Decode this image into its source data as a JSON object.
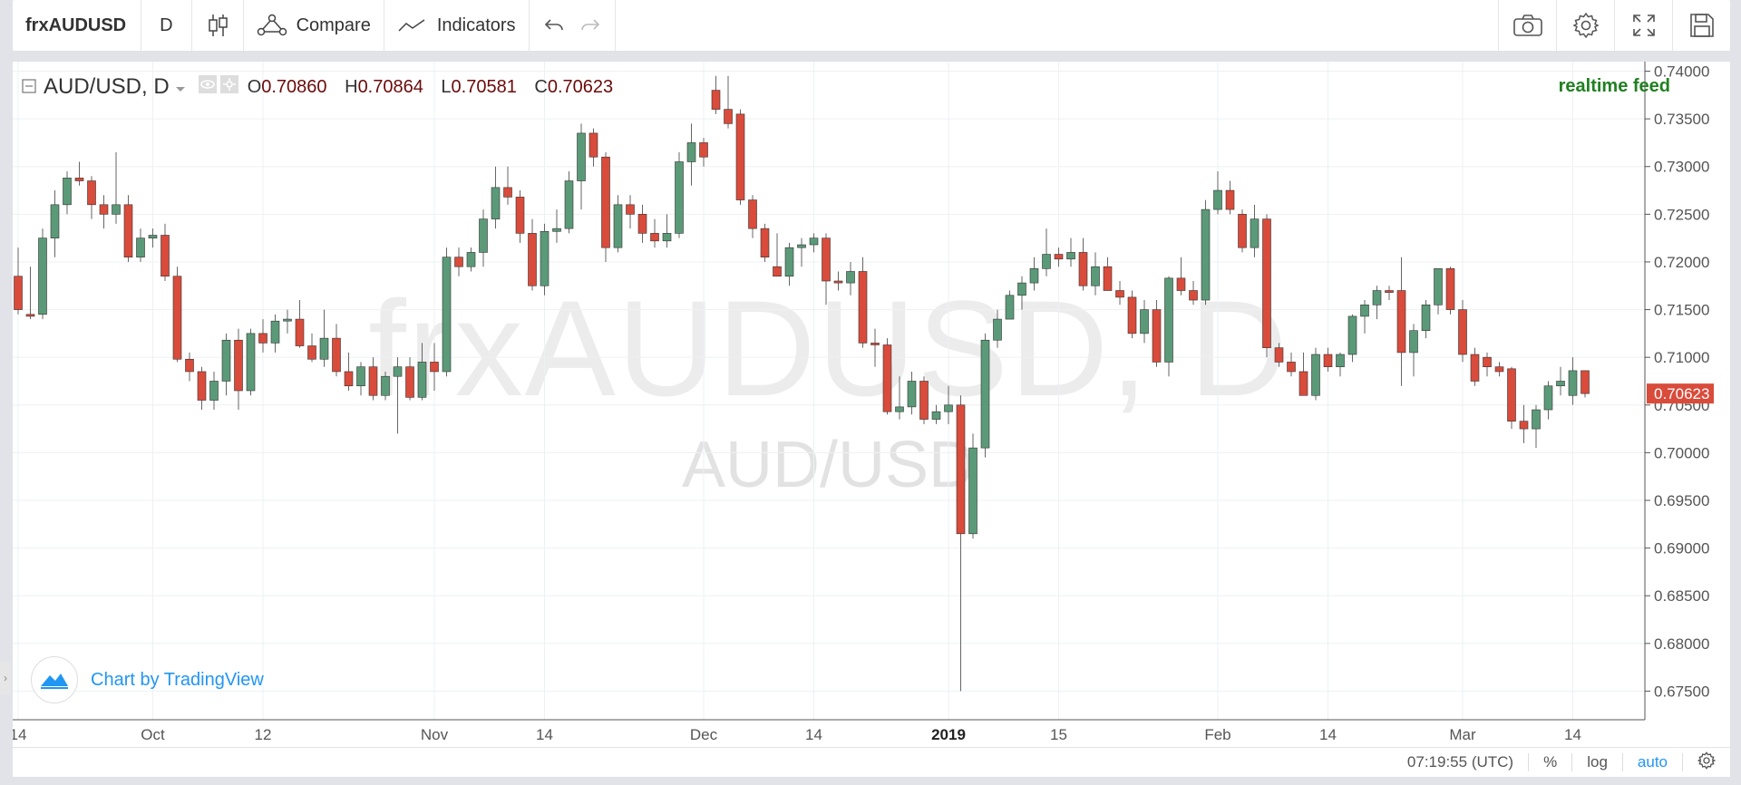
{
  "toolbar": {
    "symbol": "frxAUDUSD",
    "interval": "D",
    "compare_label": "Compare",
    "indicators_label": "Indicators"
  },
  "legend": {
    "pair": "AUD/USD, D",
    "open_label": "O",
    "open": "0.70860",
    "high_label": "H",
    "high": "0.70864",
    "low_label": "L",
    "low": "0.70581",
    "close_label": "C",
    "close": "0.70623"
  },
  "realtime": "realtime feed",
  "watermark": {
    "main": "frxAUDUSD, D",
    "sub": "AUD/USD"
  },
  "branding": "Chart by TradingView",
  "price_label": "0.70623",
  "bottom": {
    "time": "07:19:55 (UTC)",
    "percent": "%",
    "log": "log",
    "auto": "auto"
  },
  "colors": {
    "up": "#5b9a78",
    "down": "#d94b3b",
    "grid": "#eef0f3",
    "axis": "#555555",
    "realtime": "#208020",
    "accent": "#2196f3"
  },
  "chart_data": {
    "type": "candlestick",
    "title": "AUD/USD, D",
    "ylim": [
      0.672,
      0.741
    ],
    "y_ticks": [
      "0.74000",
      "0.73500",
      "0.73000",
      "0.72500",
      "0.72000",
      "0.71500",
      "0.71000",
      "0.70500",
      "0.70000",
      "0.69500",
      "0.69000",
      "0.68500",
      "0.68000",
      "0.67500"
    ],
    "y_tick_values": [
      0.74,
      0.735,
      0.73,
      0.725,
      0.72,
      0.715,
      0.71,
      0.705,
      0.7,
      0.695,
      0.69,
      0.685,
      0.68,
      0.675
    ],
    "x_ticks": [
      {
        "label": "14",
        "index": 0,
        "bold": false
      },
      {
        "label": "Oct",
        "index": 11,
        "bold": false
      },
      {
        "label": "12",
        "index": 20,
        "bold": false
      },
      {
        "label": "Nov",
        "index": 34,
        "bold": false
      },
      {
        "label": "14",
        "index": 43,
        "bold": false
      },
      {
        "label": "Dec",
        "index": 56,
        "bold": false
      },
      {
        "label": "14",
        "index": 65,
        "bold": false
      },
      {
        "label": "2019",
        "index": 76,
        "bold": true
      },
      {
        "label": "15",
        "index": 85,
        "bold": false
      },
      {
        "label": "Feb",
        "index": 98,
        "bold": false
      },
      {
        "label": "14",
        "index": 107,
        "bold": false
      },
      {
        "label": "Mar",
        "index": 118,
        "bold": false
      },
      {
        "label": "14",
        "index": 127,
        "bold": false
      }
    ],
    "candles": [
      [
        0.7185,
        0.7215,
        0.7145,
        0.715
      ],
      [
        0.7145,
        0.7195,
        0.714,
        0.7143
      ],
      [
        0.7145,
        0.7235,
        0.714,
        0.7225
      ],
      [
        0.7225,
        0.7275,
        0.7205,
        0.726
      ],
      [
        0.726,
        0.7295,
        0.725,
        0.7288
      ],
      [
        0.7288,
        0.7305,
        0.728,
        0.7285
      ],
      [
        0.7285,
        0.729,
        0.7245,
        0.726
      ],
      [
        0.726,
        0.727,
        0.7235,
        0.725
      ],
      [
        0.725,
        0.7315,
        0.724,
        0.726
      ],
      [
        0.726,
        0.727,
        0.72,
        0.7205
      ],
      [
        0.7205,
        0.7235,
        0.72,
        0.7225
      ],
      [
        0.7225,
        0.7235,
        0.7215,
        0.7228
      ],
      [
        0.7228,
        0.724,
        0.718,
        0.7185
      ],
      [
        0.7185,
        0.7195,
        0.7095,
        0.7098
      ],
      [
        0.7098,
        0.7105,
        0.7075,
        0.7085
      ],
      [
        0.7085,
        0.709,
        0.7045,
        0.7055
      ],
      [
        0.7055,
        0.7085,
        0.7045,
        0.7075
      ],
      [
        0.7075,
        0.7125,
        0.706,
        0.7118
      ],
      [
        0.7118,
        0.713,
        0.7045,
        0.7065
      ],
      [
        0.7065,
        0.713,
        0.706,
        0.7125
      ],
      [
        0.7125,
        0.714,
        0.7105,
        0.7115
      ],
      [
        0.7115,
        0.7145,
        0.7105,
        0.7138
      ],
      [
        0.7138,
        0.715,
        0.7125,
        0.714
      ],
      [
        0.714,
        0.716,
        0.711,
        0.7112
      ],
      [
        0.7112,
        0.7125,
        0.7095,
        0.7098
      ],
      [
        0.7098,
        0.715,
        0.709,
        0.712
      ],
      [
        0.712,
        0.7135,
        0.708,
        0.7085
      ],
      [
        0.7085,
        0.7105,
        0.7065,
        0.707
      ],
      [
        0.707,
        0.7095,
        0.706,
        0.709
      ],
      [
        0.709,
        0.71,
        0.7055,
        0.706
      ],
      [
        0.706,
        0.7085,
        0.7055,
        0.708
      ],
      [
        0.708,
        0.71,
        0.702,
        0.709
      ],
      [
        0.709,
        0.71,
        0.7055,
        0.7058
      ],
      [
        0.7058,
        0.7115,
        0.7055,
        0.7095
      ],
      [
        0.7095,
        0.7115,
        0.7065,
        0.7085
      ],
      [
        0.7085,
        0.7215,
        0.708,
        0.7205
      ],
      [
        0.7205,
        0.7215,
        0.7185,
        0.7195
      ],
      [
        0.7195,
        0.7215,
        0.719,
        0.721
      ],
      [
        0.721,
        0.7255,
        0.7195,
        0.7245
      ],
      [
        0.7245,
        0.73,
        0.7235,
        0.7278
      ],
      [
        0.7278,
        0.73,
        0.726,
        0.7268
      ],
      [
        0.7268,
        0.7275,
        0.722,
        0.723
      ],
      [
        0.723,
        0.7245,
        0.717,
        0.7175
      ],
      [
        0.7175,
        0.724,
        0.7165,
        0.7232
      ],
      [
        0.7232,
        0.7255,
        0.722,
        0.7235
      ],
      [
        0.7235,
        0.7295,
        0.723,
        0.7285
      ],
      [
        0.7285,
        0.7345,
        0.7255,
        0.7335
      ],
      [
        0.7335,
        0.734,
        0.73,
        0.731
      ],
      [
        0.731,
        0.7315,
        0.72,
        0.7215
      ],
      [
        0.7215,
        0.727,
        0.721,
        0.726
      ],
      [
        0.726,
        0.727,
        0.7235,
        0.725
      ],
      [
        0.725,
        0.726,
        0.722,
        0.723
      ],
      [
        0.723,
        0.7245,
        0.7215,
        0.7222
      ],
      [
        0.7222,
        0.725,
        0.7215,
        0.723
      ],
      [
        0.723,
        0.7315,
        0.7225,
        0.7305
      ],
      [
        0.7305,
        0.7345,
        0.728,
        0.7325
      ],
      [
        0.7325,
        0.733,
        0.73,
        0.731
      ],
      [
        0.738,
        0.7395,
        0.7355,
        0.736
      ],
      [
        0.736,
        0.7395,
        0.734,
        0.7345
      ],
      [
        0.7355,
        0.736,
        0.726,
        0.7265
      ],
      [
        0.7265,
        0.727,
        0.7225,
        0.7235
      ],
      [
        0.7235,
        0.724,
        0.72,
        0.7205
      ],
      [
        0.7195,
        0.723,
        0.7185,
        0.7185
      ],
      [
        0.7185,
        0.722,
        0.7175,
        0.7215
      ],
      [
        0.7215,
        0.7225,
        0.7195,
        0.7218
      ],
      [
        0.7218,
        0.723,
        0.721,
        0.7225
      ],
      [
        0.7225,
        0.723,
        0.7155,
        0.718
      ],
      [
        0.718,
        0.719,
        0.717,
        0.7178
      ],
      [
        0.7178,
        0.72,
        0.7165,
        0.719
      ],
      [
        0.719,
        0.7205,
        0.711,
        0.7115
      ],
      [
        0.7115,
        0.713,
        0.709,
        0.7113
      ],
      [
        0.7113,
        0.712,
        0.704,
        0.7043
      ],
      [
        0.7043,
        0.708,
        0.7035,
        0.7048
      ],
      [
        0.7048,
        0.7085,
        0.704,
        0.7075
      ],
      [
        0.7075,
        0.708,
        0.703,
        0.7035
      ],
      [
        0.7035,
        0.705,
        0.703,
        0.7043
      ],
      [
        0.7043,
        0.707,
        0.703,
        0.705
      ],
      [
        0.705,
        0.706,
        0.675,
        0.6915
      ],
      [
        0.6915,
        0.702,
        0.691,
        0.7005
      ],
      [
        0.7005,
        0.7125,
        0.6995,
        0.7118
      ],
      [
        0.7118,
        0.715,
        0.711,
        0.714
      ],
      [
        0.714,
        0.717,
        0.714,
        0.7165
      ],
      [
        0.7165,
        0.7185,
        0.715,
        0.7178
      ],
      [
        0.7178,
        0.7205,
        0.717,
        0.7193
      ],
      [
        0.7193,
        0.7235,
        0.7185,
        0.7208
      ],
      [
        0.7208,
        0.7215,
        0.7195,
        0.7203
      ],
      [
        0.7203,
        0.7225,
        0.7195,
        0.721
      ],
      [
        0.721,
        0.7225,
        0.717,
        0.7175
      ],
      [
        0.7175,
        0.721,
        0.7165,
        0.7195
      ],
      [
        0.7195,
        0.7205,
        0.717,
        0.717
      ],
      [
        0.717,
        0.718,
        0.7155,
        0.7163
      ],
      [
        0.7163,
        0.717,
        0.712,
        0.7125
      ],
      [
        0.7125,
        0.716,
        0.7115,
        0.715
      ],
      [
        0.715,
        0.716,
        0.709,
        0.7095
      ],
      [
        0.7095,
        0.7185,
        0.708,
        0.7183
      ],
      [
        0.7183,
        0.7205,
        0.7165,
        0.717
      ],
      [
        0.717,
        0.718,
        0.7155,
        0.716
      ],
      [
        0.716,
        0.7265,
        0.7155,
        0.7255
      ],
      [
        0.7255,
        0.7295,
        0.725,
        0.7275
      ],
      [
        0.7275,
        0.7285,
        0.725,
        0.7255
      ],
      [
        0.725,
        0.7255,
        0.721,
        0.7215
      ],
      [
        0.7215,
        0.726,
        0.7205,
        0.7245
      ],
      [
        0.7245,
        0.725,
        0.71,
        0.711
      ],
      [
        0.711,
        0.7115,
        0.709,
        0.7095
      ],
      [
        0.7095,
        0.7105,
        0.708,
        0.7085
      ],
      [
        0.7085,
        0.7105,
        0.706,
        0.706
      ],
      [
        0.706,
        0.711,
        0.7055,
        0.7103
      ],
      [
        0.7103,
        0.711,
        0.7085,
        0.709
      ],
      [
        0.709,
        0.7105,
        0.708,
        0.7103
      ],
      [
        0.7103,
        0.7145,
        0.7095,
        0.7143
      ],
      [
        0.7143,
        0.716,
        0.7125,
        0.7155
      ],
      [
        0.7155,
        0.7175,
        0.714,
        0.717
      ],
      [
        0.717,
        0.7175,
        0.716,
        0.7168
      ],
      [
        0.717,
        0.7205,
        0.707,
        0.7105
      ],
      [
        0.7105,
        0.7135,
        0.708,
        0.7128
      ],
      [
        0.7128,
        0.716,
        0.712,
        0.7155
      ],
      [
        0.7155,
        0.719,
        0.7145,
        0.7193
      ],
      [
        0.7193,
        0.7195,
        0.7145,
        0.715
      ],
      [
        0.715,
        0.716,
        0.7095,
        0.7103
      ],
      [
        0.7103,
        0.711,
        0.707,
        0.7075
      ],
      [
        0.71,
        0.7105,
        0.708,
        0.709
      ],
      [
        0.709,
        0.7095,
        0.708,
        0.7085
      ],
      [
        0.7088,
        0.709,
        0.7025,
        0.7033
      ],
      [
        0.7033,
        0.705,
        0.701,
        0.7025
      ],
      [
        0.7025,
        0.705,
        0.7005,
        0.7045
      ],
      [
        0.7045,
        0.7075,
        0.7035,
        0.707
      ],
      [
        0.707,
        0.709,
        0.706,
        0.7075
      ],
      [
        0.706,
        0.71,
        0.705,
        0.7086
      ],
      [
        0.7086,
        0.7086,
        0.7058,
        0.7062
      ]
    ]
  }
}
